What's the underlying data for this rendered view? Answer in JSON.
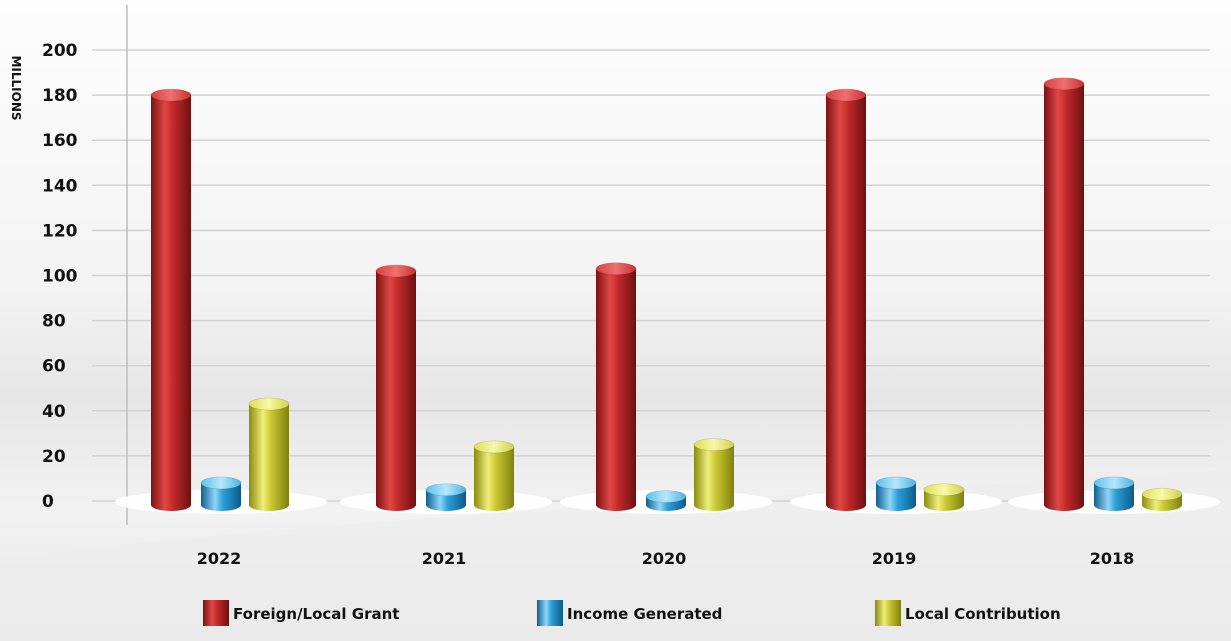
{
  "chart_data": {
    "type": "bar",
    "title": "",
    "xlabel": "",
    "ylabel": "MILLIONS",
    "ylim": [
      0,
      200
    ],
    "yticks": [
      0,
      20,
      40,
      60,
      80,
      100,
      120,
      140,
      160,
      180,
      200
    ],
    "grid": true,
    "legend_position": "bottom",
    "categories": [
      "2022",
      "2021",
      "2020",
      "2019",
      "2018"
    ],
    "series": [
      {
        "name": "Foreign/Local Grant",
        "color": "#c42a2a",
        "values": [
          180,
          102,
          103,
          180,
          185
        ]
      },
      {
        "name": "Income Generated",
        "color": "#2a9fd8",
        "values": [
          8,
          5,
          2,
          8,
          8
        ]
      },
      {
        "name": "Local Contribution",
        "color": "#c8c832",
        "values": [
          43,
          24,
          25,
          5,
          3
        ]
      }
    ]
  }
}
